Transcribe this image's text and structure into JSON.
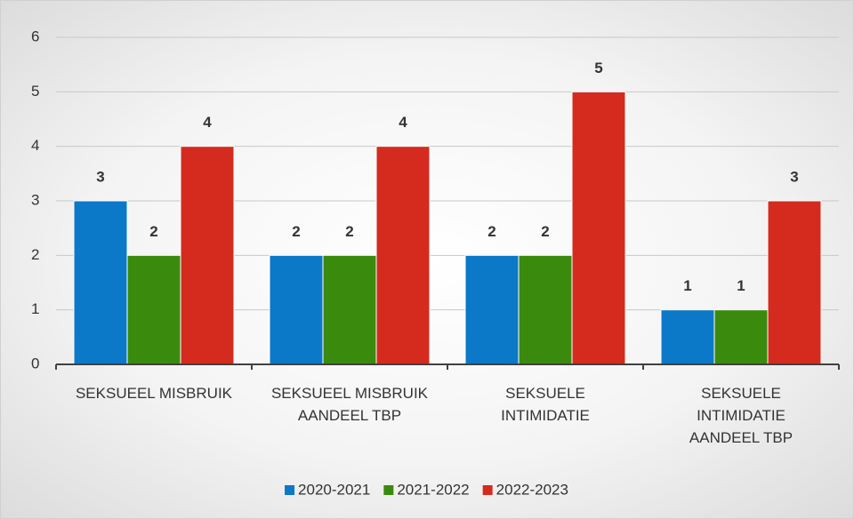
{
  "chart_data": {
    "type": "bar",
    "categories": [
      "SEKSUEEL MISBRUIK",
      "SEKSUEEL MISBRUIK AANDEEL TBP",
      "SEKSUELE INTIMIDATIE",
      "SEKSUELE INTIMIDATIE AANDEEL TBP"
    ],
    "series": [
      {
        "name": "2020-2021",
        "color": "#0b78c8",
        "values": [
          3,
          2,
          2,
          1
        ]
      },
      {
        "name": "2021-2022",
        "color": "#3a8a0e",
        "values": [
          2,
          2,
          2,
          1
        ]
      },
      {
        "name": "2022-2023",
        "color": "#d42b1e",
        "values": [
          4,
          4,
          5,
          3
        ]
      }
    ],
    "ylim": [
      0,
      6
    ],
    "yticks": [
      0,
      1,
      2,
      3,
      4,
      5,
      6
    ],
    "grid": true,
    "legend": "bottom"
  }
}
